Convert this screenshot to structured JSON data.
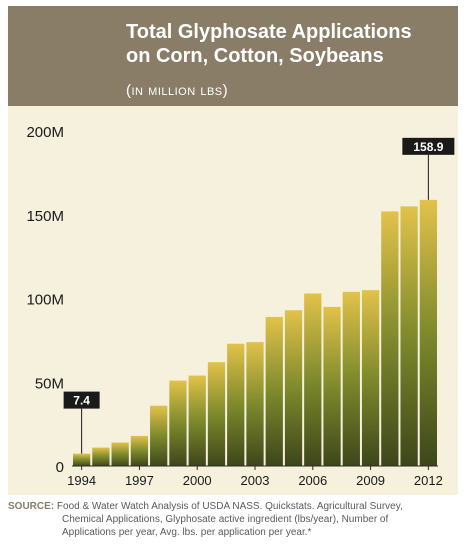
{
  "header": {
    "title_line1": "Total Glyphosate Applications",
    "title_line2": "on Corn, Cotton, Soybeans",
    "subtitle": "(in million lbs)"
  },
  "colors": {
    "header_bg": "#8a7d68",
    "panel_bg": "#f6f1dd",
    "bar_top": "#e2c24a",
    "bar_bottom": "#3d461a",
    "callout_bg": "#1a1a1a"
  },
  "chart_data": {
    "type": "bar",
    "title": "Total Glyphosate Applications on Corn, Cotton, Soybeans",
    "subtitle": "(in million lbs)",
    "categories": [
      "1994",
      "1995",
      "1996",
      "1997",
      "1998",
      "1999",
      "2000",
      "2001",
      "2002",
      "2003",
      "2004",
      "2005",
      "2006",
      "2007",
      "2008",
      "2009",
      "2010",
      "2011",
      "2012"
    ],
    "values": [
      7.4,
      11,
      14,
      18,
      36,
      51,
      54,
      62,
      73,
      74,
      89,
      93,
      103,
      95,
      104,
      105,
      152,
      155,
      158.9
    ],
    "ylim": [
      0,
      200
    ],
    "yticks": [
      0,
      50,
      100,
      150,
      200
    ],
    "ytick_labels": [
      "0",
      "50M",
      "100M",
      "150M",
      "200M"
    ],
    "xtick_labels": [
      "1994",
      "1997",
      "2000",
      "2003",
      "2006",
      "2009",
      "2012"
    ],
    "xlabel": "",
    "ylabel": "",
    "grid": false,
    "legend": "none",
    "annotations": [
      {
        "category": "1994",
        "text": "7.4"
      },
      {
        "category": "2012",
        "text": "158.9"
      }
    ]
  },
  "source": {
    "label": "SOURCE:",
    "line1": "Food & Water Watch Analysis of USDA NASS. Quickstats. Agricultural Survey,",
    "line2": "Chemical Applications, Glyphosate active ingredient (lbs/year), Number of",
    "line3": "Applications per year, Avg. lbs. per application per year.*"
  }
}
